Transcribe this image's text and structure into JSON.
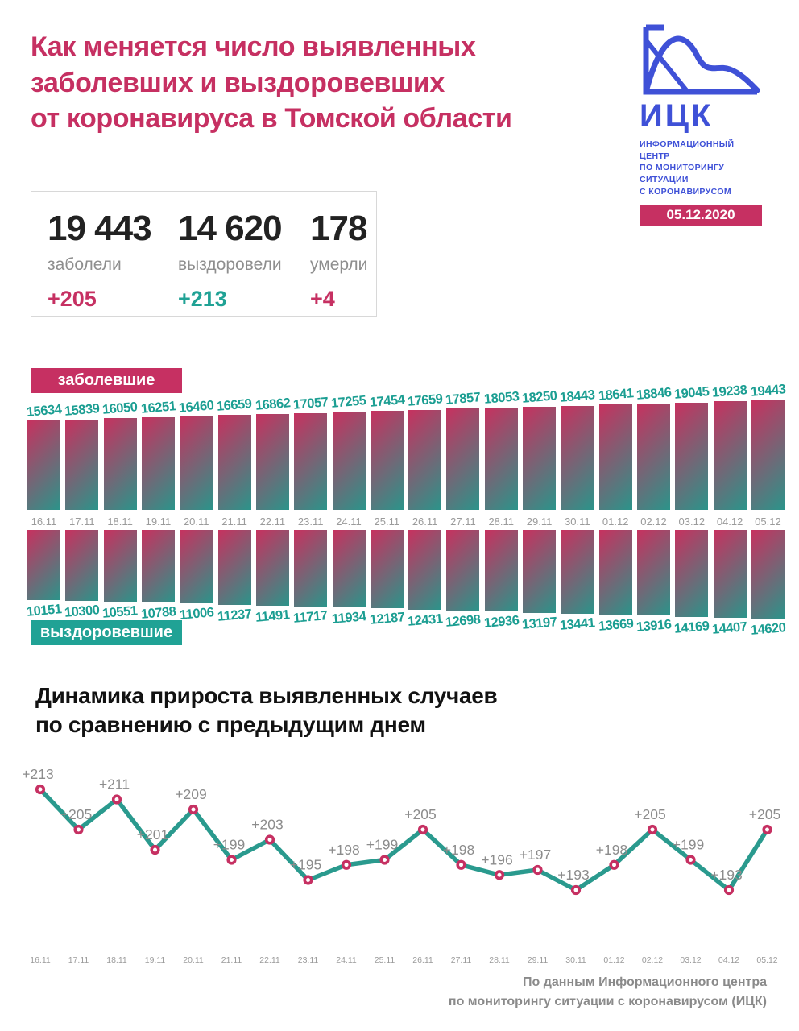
{
  "header": {
    "title": "Как меняется число выявленных\nзаболевших и выздоровевших\nот коронавируса в Томской области",
    "logo": {
      "name": "ИЦК",
      "subtitle": "ИНФОРМАЦИОННЫЙ ЦЕНТР\nПО МОНИТОРИНГУ СИТУАЦИИ\nС КОРОНАВИРУСОМ",
      "date": "05.12.2020",
      "icon": "epidemic-curves-icon",
      "color": "#3f51d7"
    }
  },
  "stats": {
    "items": [
      {
        "value": "19 443",
        "label": "заболели",
        "delta": "+205"
      },
      {
        "value": "14 620",
        "label": "выздоровели",
        "delta": "+213"
      },
      {
        "value": "178",
        "label": "умерли",
        "delta": "+4"
      }
    ]
  },
  "colors": {
    "crimson": "#c63062",
    "teal": "#20a295",
    "bar_top": "#c7315f",
    "bar_bottom": "#2b948a",
    "value_label": "#1b9e92",
    "gray_label": "#9b9b9b"
  },
  "chart_data": [
    {
      "type": "bar",
      "title": "заболевшие",
      "categories": [
        "16.11",
        "17.11",
        "18.11",
        "19.11",
        "20.11",
        "21.11",
        "22.11",
        "23.11",
        "24.11",
        "25.11",
        "26.11",
        "27.11",
        "28.11",
        "29.11",
        "30.11",
        "01.12",
        "02.12",
        "03.12",
        "04.12",
        "05.12"
      ],
      "values": [
        15634,
        15839,
        16050,
        16251,
        16460,
        16659,
        16862,
        17057,
        17255,
        17454,
        17659,
        17857,
        18053,
        18250,
        18443,
        18641,
        18846,
        19045,
        19238,
        19443
      ],
      "bar_gradient": [
        "#c7315f",
        "#2b948a"
      ],
      "value_label_color": "#1b9e92",
      "ylim": [
        15634,
        19443
      ]
    },
    {
      "type": "bar",
      "title": "выздоровевшие",
      "categories": [
        "16.11",
        "17.11",
        "18.11",
        "19.11",
        "20.11",
        "21.11",
        "22.11",
        "23.11",
        "24.11",
        "25.11",
        "26.11",
        "27.11",
        "28.11",
        "29.11",
        "30.11",
        "01.12",
        "02.12",
        "03.12",
        "04.12",
        "05.12"
      ],
      "values": [
        10151,
        10300,
        10551,
        10788,
        11006,
        11237,
        11491,
        11717,
        11934,
        12187,
        12431,
        12698,
        12936,
        13197,
        13441,
        13669,
        13916,
        14169,
        14407,
        14620
      ],
      "bar_gradient": [
        "#c7315f",
        "#2b948a"
      ],
      "value_label_color": "#1b9e92",
      "ylim": [
        10151,
        14620
      ]
    },
    {
      "type": "line",
      "title": "Динамика прироста выявленных случаев\nпо сравнению с предыдущим днем",
      "x": [
        "16.11",
        "17.11",
        "18.11",
        "19.11",
        "20.11",
        "21.11",
        "22.11",
        "23.11",
        "24.11",
        "25.11",
        "26.11",
        "27.11",
        "28.11",
        "29.11",
        "30.11",
        "01.12",
        "02.12",
        "03.12",
        "04.12",
        "05.12"
      ],
      "values": [
        213,
        205,
        211,
        201,
        209,
        199,
        203,
        195,
        198,
        199,
        205,
        198,
        196,
        197,
        193,
        198,
        205,
        199,
        193,
        205
      ],
      "point_labels": [
        "+213",
        "+205",
        "+211",
        "+201",
        "+209",
        "+199",
        "+203",
        "+195",
        "+198",
        "+199",
        "+205",
        "+198",
        "+196",
        "+197",
        "+193",
        "+198",
        "+205",
        "+199",
        "+193",
        "+205"
      ],
      "line_color": "#2a9a8e",
      "marker_color": "#c63062",
      "label_color": "#8c8c8c",
      "ylim": [
        193,
        213
      ],
      "legend": "none",
      "grid": false
    }
  ],
  "footer": {
    "source": "По данным Информационного центра\nпо мониторингу ситуации с коронавирусом (ИЦК)"
  }
}
